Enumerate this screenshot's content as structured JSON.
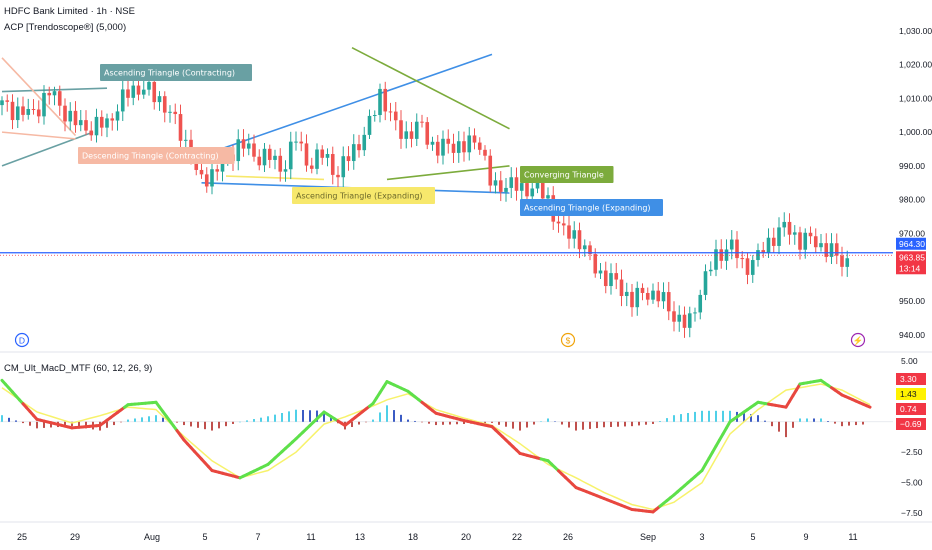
{
  "header": {
    "title": "HDFC Bank Limited · 1h · NSE",
    "indicator1": "ACP [Trendoscope®] (5,000)",
    "indicator2": "CM_Ult_MacD_MTF (60, 12, 26, 9)"
  },
  "colors": {
    "up": "#26a69a",
    "down": "#ef5350",
    "blueLine": "#2962ff",
    "macd_up": "#5ee04a",
    "macd_down": "#e8473f",
    "signal": "#f7f26b",
    "hist_pos_strong": "#4fd0e8",
    "hist_pos_weak": "#3b5bc4",
    "hist_neg": "#c0504d"
  },
  "chart_data": [
    {
      "type": "candlestick",
      "title": "HDFC Bank Limited · 1h · NSE",
      "ylim": [
        937,
        1032
      ],
      "yticks": [
        "1,030.00",
        "1,020.00",
        "1,010.00",
        "1,000.00",
        "990.00",
        "980.00",
        "970.00",
        "950.00",
        "940.00"
      ],
      "ytick_values": [
        1030,
        1020,
        1010,
        1000,
        990,
        980,
        970,
        950,
        940
      ],
      "xticks": [
        "25",
        "29",
        "Aug",
        "5",
        "7",
        "11",
        "13",
        "18",
        "20",
        "22",
        "26",
        "Sep",
        "3",
        "5",
        "9",
        "11"
      ],
      "last_price": "963.85",
      "countdown": "13:14",
      "ref_price": "964.30",
      "series_points": [
        [
          0,
          1008
        ],
        [
          8,
          1005
        ],
        [
          14,
          1012
        ],
        [
          20,
          1003
        ],
        [
          26,
          1001
        ],
        [
          30,
          1003
        ],
        [
          37,
          1013
        ],
        [
          40,
          1013
        ],
        [
          45,
          1010
        ],
        [
          50,
          1002
        ],
        [
          54,
          994
        ],
        [
          56,
          985
        ],
        [
          60,
          988
        ],
        [
          64,
          992
        ],
        [
          68,
          997
        ],
        [
          72,
          993
        ],
        [
          76,
          993
        ],
        [
          80,
          989
        ],
        [
          84,
          998
        ],
        [
          88,
          990
        ],
        [
          92,
          994
        ],
        [
          96,
          987
        ],
        [
          100,
          995
        ],
        [
          104,
          999
        ],
        [
          108,
          1012
        ],
        [
          112,
          1002
        ],
        [
          116,
          999
        ],
        [
          120,
          1002
        ],
        [
          124,
          994
        ],
        [
          128,
          997
        ],
        [
          132,
          995
        ],
        [
          136,
          999
        ],
        [
          140,
          983
        ],
        [
          144,
          985
        ],
        [
          148,
          983
        ],
        [
          152,
          984
        ],
        [
          156,
          980
        ],
        [
          160,
          970
        ],
        [
          164,
          970
        ],
        [
          168,
          962
        ],
        [
          172,
          957
        ],
        [
          176,
          955
        ],
        [
          180,
          950
        ],
        [
          184,
          953
        ],
        [
          188,
          951
        ],
        [
          192,
          946
        ],
        [
          196,
          942
        ],
        [
          200,
          955
        ],
        [
          204,
          963
        ],
        [
          208,
          967
        ],
        [
          212,
          960
        ],
        [
          216,
          963
        ],
        [
          220,
          969
        ],
        [
          224,
          972
        ],
        [
          228,
          968
        ],
        [
          232,
          968
        ],
        [
          236,
          965
        ],
        [
          240,
          962
        ]
      ],
      "events": [
        "D",
        "$",
        "⚡"
      ],
      "patterns": [
        {
          "label": "Ascending Triangle (Contracting)",
          "color": "#69a0a3"
        },
        {
          "label": "Descending Triangle (Contracting)",
          "color": "#f6b9a4"
        },
        {
          "label": "Ascending Triangle (Expanding)",
          "color": "#f7e86c"
        },
        {
          "label": "Converging Triangle",
          "color": "#7cab3c"
        },
        {
          "label": "Ascending Triangle (Expanding)",
          "color": "#3f8fe6"
        }
      ]
    },
    {
      "type": "line",
      "title": "CM_Ult_MacD_MTF (60, 12, 26, 9)",
      "ylim": [
        -7.9,
        5.4
      ],
      "yticks": [
        "5.00",
        "2.50",
        "−2.50",
        "−5.00",
        "−7.50"
      ],
      "ytick_values": [
        5,
        2.5,
        -2.5,
        -5,
        -7.5
      ],
      "value_tags": [
        {
          "text": "3.30",
          "bg": "#f23645",
          "fg": "#ffffff"
        },
        {
          "text": "1.43",
          "bg": "#fff200",
          "fg": "#131722"
        },
        {
          "text": "0.74",
          "bg": "#f23645",
          "fg": "#ffffff"
        },
        {
          "text": "−0.69",
          "bg": "#f23645",
          "fg": "#ffffff"
        }
      ],
      "series": [
        {
          "name": "MACD",
          "values": [
            [
              0,
              3.4
            ],
            [
              10,
              0.2
            ],
            [
              20,
              -0.5
            ],
            [
              28,
              -0.3
            ],
            [
              36,
              1.4
            ],
            [
              44,
              1.6
            ],
            [
              52,
              -1.5
            ],
            [
              60,
              -4
            ],
            [
              68,
              -4.6
            ],
            [
              76,
              -3.5
            ],
            [
              84,
              -1.4
            ],
            [
              92,
              0.8
            ],
            [
              98,
              -0.3
            ],
            [
              106,
              1.5
            ],
            [
              110,
              3.3
            ],
            [
              116,
              2.5
            ],
            [
              124,
              0.7
            ],
            [
              132,
              0.1
            ],
            [
              140,
              -0.4
            ],
            [
              148,
              -2.6
            ],
            [
              156,
              -3.2
            ],
            [
              164,
              -5.4
            ],
            [
              172,
              -6.3
            ],
            [
              180,
              -7.2
            ],
            [
              186,
              -7.4
            ],
            [
              192,
              -6
            ],
            [
              200,
              -4
            ],
            [
              208,
              0
            ],
            [
              216,
              1.6
            ],
            [
              224,
              1.2
            ],
            [
              228,
              3.1
            ],
            [
              234,
              3.4
            ],
            [
              240,
              2.2
            ],
            [
              248,
              1.2
            ]
          ]
        },
        {
          "name": "Signal",
          "values": [
            [
              0,
              2.8
            ],
            [
              10,
              0.8
            ],
            [
              20,
              -0.1
            ],
            [
              28,
              0.5
            ],
            [
              36,
              1.2
            ],
            [
              44,
              1
            ],
            [
              52,
              -1.2
            ],
            [
              60,
              -3.2
            ],
            [
              68,
              -4.6
            ],
            [
              76,
              -4
            ],
            [
              84,
              -2.5
            ],
            [
              92,
              -0.2
            ],
            [
              98,
              0.4
            ],
            [
              106,
              1.3
            ],
            [
              110,
              1.8
            ],
            [
              116,
              2.3
            ],
            [
              124,
              1
            ],
            [
              132,
              0.3
            ],
            [
              140,
              -0.3
            ],
            [
              148,
              -1.8
            ],
            [
              156,
              -3.5
            ],
            [
              164,
              -4.6
            ],
            [
              172,
              -5.8
            ],
            [
              180,
              -6.8
            ],
            [
              186,
              -7.2
            ],
            [
              192,
              -6.6
            ],
            [
              200,
              -5
            ],
            [
              208,
              -1
            ],
            [
              216,
              1
            ],
            [
              224,
              2.6
            ],
            [
              228,
              2.8
            ],
            [
              234,
              3.1
            ],
            [
              240,
              2.6
            ],
            [
              248,
              1.4
            ]
          ]
        }
      ]
    }
  ]
}
